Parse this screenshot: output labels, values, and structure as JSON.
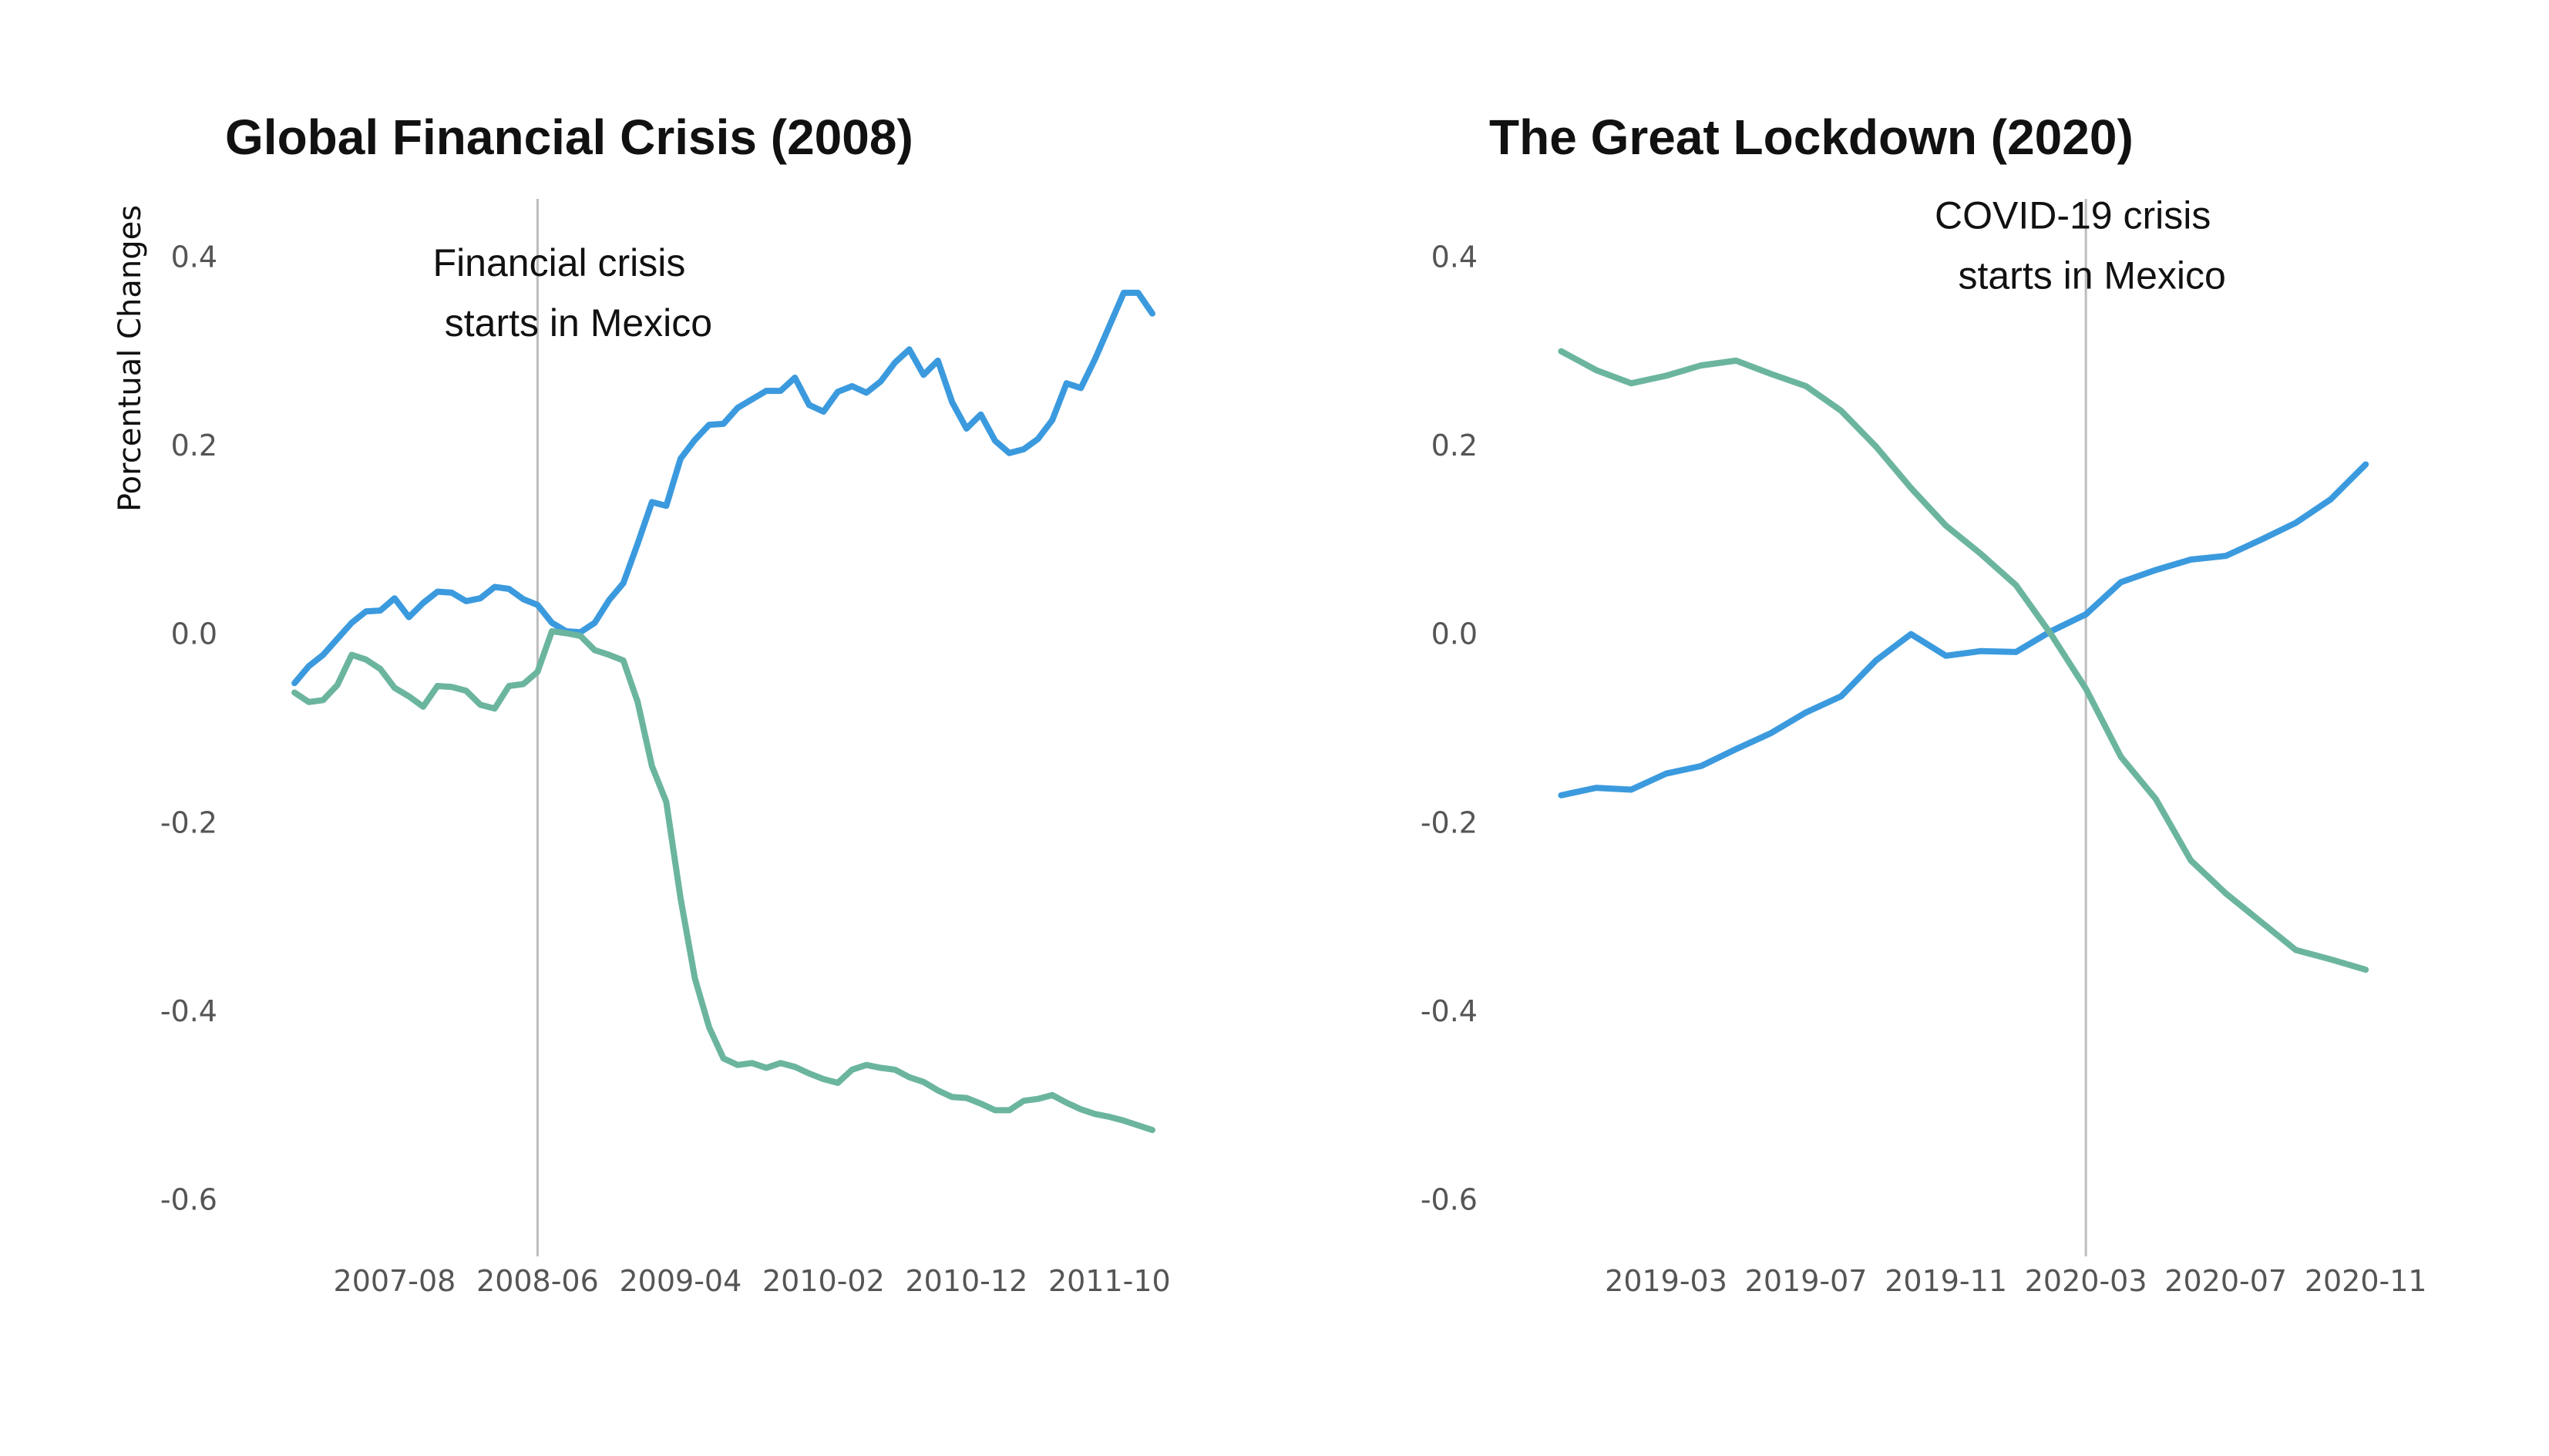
{
  "chart_data": [
    {
      "type": "line",
      "title": "Global Financial Crisis (2008)",
      "xlabel": "",
      "ylabel": "Porcentual Changes",
      "ylim": [
        -0.66,
        0.46
      ],
      "yticks": [
        0.4,
        0.2,
        0.0,
        -0.2,
        -0.4,
        -0.6
      ],
      "ytick_labels": [
        "0.4",
        "0.2",
        "0.0",
        "-0.2",
        "-0.4",
        "-0.6"
      ],
      "xlim": [
        "2006-11",
        "2012-01"
      ],
      "xticks": [
        "2007-08",
        "2008-06",
        "2009-04",
        "2010-02",
        "2010-12",
        "2011-10"
      ],
      "grid": false,
      "legend": false,
      "vline": {
        "x": "2008-06",
        "color": "#bdbdbd"
      },
      "annotation": {
        "x": "2008-06",
        "y": 0.38,
        "lines": [
          "Financial crisis",
          "starts in Mexico"
        ]
      },
      "x_start": "2007-01",
      "series": [
        {
          "color": "#3b9ade",
          "values": [
            -0.052,
            -0.034,
            -0.022,
            -0.005,
            0.012,
            0.024,
            0.025,
            0.038,
            0.018,
            0.033,
            0.045,
            0.044,
            0.035,
            0.038,
            0.05,
            0.048,
            0.037,
            0.031,
            0.012,
            0.003,
            0.002,
            0.012,
            0.036,
            0.054,
            0.096,
            0.14,
            0.136,
            0.186,
            0.206,
            0.222,
            0.223,
            0.24,
            0.249,
            0.258,
            0.258,
            0.272,
            0.243,
            0.236,
            0.257,
            0.263,
            0.256,
            0.268,
            0.288,
            0.302,
            0.275,
            0.29,
            0.246,
            0.218,
            0.233,
            0.205,
            0.192,
            0.196,
            0.207,
            0.227,
            0.266,
            0.261,
            0.292,
            0.327,
            0.362,
            0.362,
            0.34
          ]
        },
        {
          "color": "#6bb59f",
          "values": [
            -0.062,
            -0.072,
            -0.07,
            -0.054,
            -0.022,
            -0.027,
            -0.037,
            -0.057,
            -0.066,
            -0.077,
            -0.055,
            -0.056,
            -0.06,
            -0.075,
            -0.079,
            -0.055,
            -0.053,
            -0.04,
            0.003,
            0.001,
            -0.002,
            -0.017,
            -0.022,
            -0.028,
            -0.072,
            -0.14,
            -0.178,
            -0.28,
            -0.365,
            -0.417,
            -0.45,
            -0.457,
            -0.455,
            -0.46,
            -0.455,
            -0.459,
            -0.466,
            -0.472,
            -0.476,
            -0.462,
            -0.457,
            -0.46,
            -0.462,
            -0.47,
            -0.475,
            -0.484,
            -0.491,
            -0.492,
            -0.498,
            -0.505,
            -0.505,
            -0.495,
            -0.493,
            -0.489,
            -0.497,
            -0.504,
            -0.509,
            -0.512,
            -0.516,
            -0.521,
            -0.526
          ]
        }
      ]
    },
    {
      "type": "line",
      "title": "The Great Lockdown (2020)",
      "xlabel": "",
      "ylabel": "",
      "ylim": [
        -0.66,
        0.46
      ],
      "yticks": [
        0.4,
        0.2,
        0.0,
        -0.2,
        -0.4,
        -0.6
      ],
      "ytick_labels": [
        "0.4",
        "0.2",
        "0.0",
        "-0.2",
        "-0.4",
        "-0.6"
      ],
      "xlim": [
        "2018-11",
        "2021-01"
      ],
      "xticks": [
        "2019-03",
        "2019-07",
        "2019-11",
        "2020-03",
        "2020-07",
        "2020-11"
      ],
      "grid": false,
      "legend": false,
      "vline": {
        "x": "2020-03",
        "color": "#bdbdbd"
      },
      "annotation": {
        "x": "2020-03",
        "y": 0.43,
        "lines": [
          "COVID-19 crisis",
          "starts in Mexico"
        ]
      },
      "x_start": "2018-12",
      "series": [
        {
          "color": "#3b9ade",
          "values": [
            -0.171,
            -0.163,
            -0.165,
            -0.148,
            -0.14,
            -0.122,
            -0.105,
            -0.083,
            -0.066,
            -0.028,
            0.0,
            -0.023,
            -0.018,
            -0.019,
            0.003,
            0.021,
            0.055,
            0.068,
            0.079,
            0.083,
            0.1,
            0.118,
            0.143,
            0.18
          ]
        },
        {
          "color": "#6bb59f",
          "values": [
            0.3,
            0.28,
            0.266,
            0.274,
            0.285,
            0.29,
            0.276,
            0.263,
            0.237,
            0.199,
            0.155,
            0.115,
            0.085,
            0.052,
            0.0,
            -0.058,
            -0.13,
            -0.175,
            -0.24,
            -0.275,
            -0.305,
            -0.335,
            -0.345,
            -0.356
          ]
        }
      ]
    }
  ]
}
